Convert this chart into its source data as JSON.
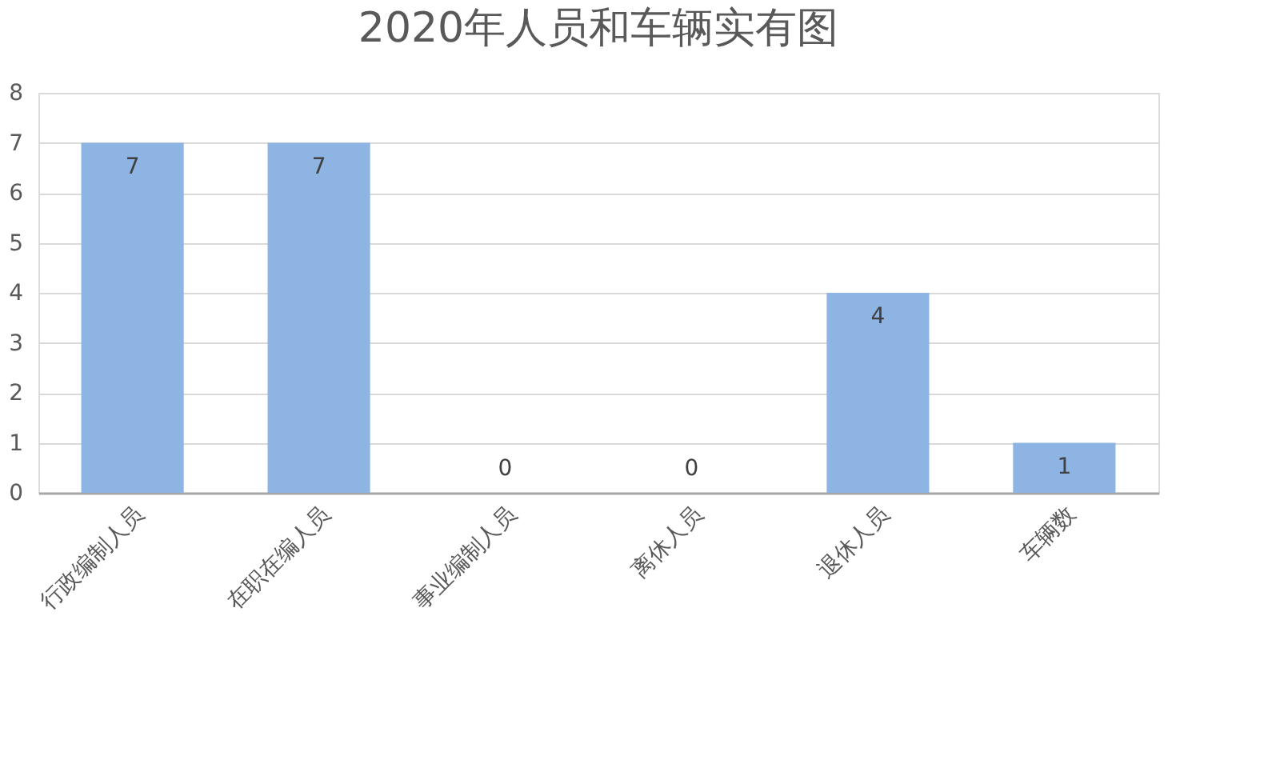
{
  "chart_data": {
    "type": "bar",
    "title": "2020年人员和车辆实有图",
    "categories": [
      "行政编制人员",
      "在职在编人员",
      "事业编制人员",
      "离休人员",
      "退休人员",
      "车辆数"
    ],
    "values": [
      7,
      7,
      0,
      0,
      4,
      1
    ],
    "color": "#8db4e2",
    "ylim": [
      0,
      8
    ],
    "yticks": [
      0,
      1,
      2,
      3,
      4,
      5,
      6,
      7,
      8
    ],
    "grid": "y",
    "data_labels": true
  }
}
